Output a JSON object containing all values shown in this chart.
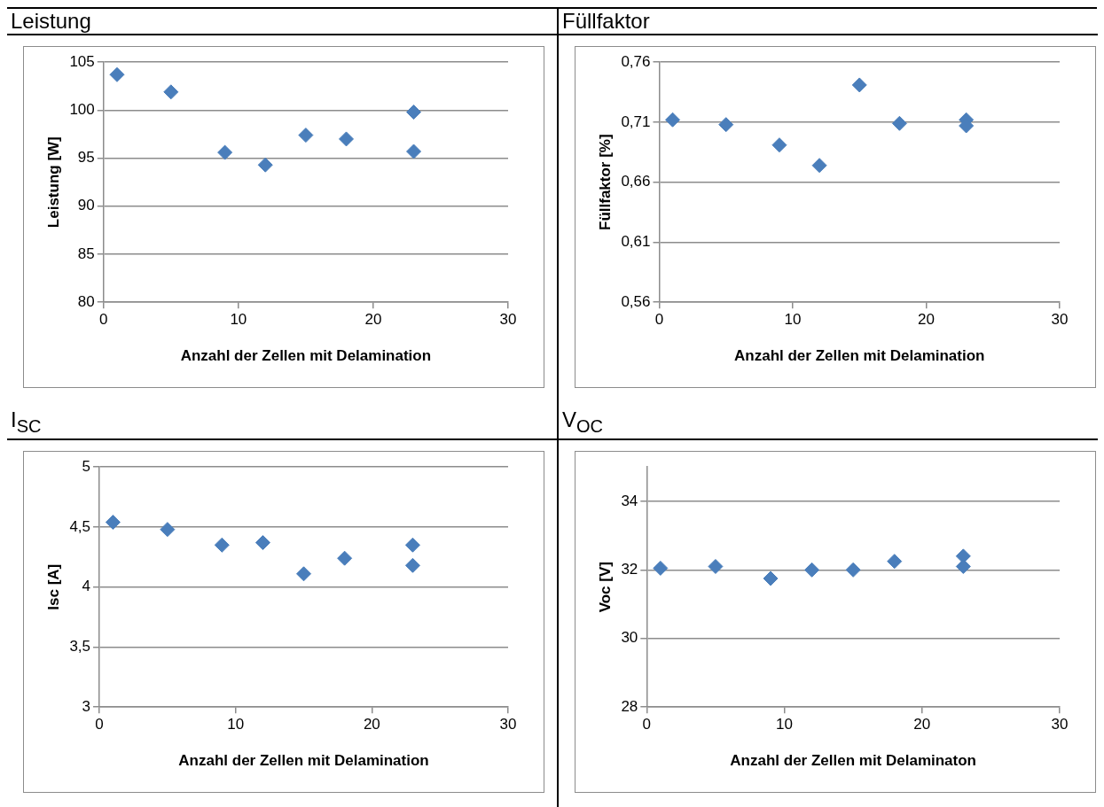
{
  "chart_data": [
    {
      "type": "scatter",
      "title": "Leistung",
      "xlabel": "Anzahl der Zellen mit Delamination",
      "ylabel": "Leistung [W]",
      "x": [
        1,
        5,
        9,
        12,
        15,
        18,
        23,
        23
      ],
      "series": [
        {
          "color": "#4a7ebb",
          "values": [
            103.7,
            101.9,
            95.6,
            94.3,
            97.4,
            97.0,
            99.8,
            95.7
          ]
        }
      ],
      "xlim": [
        0,
        30
      ],
      "xticks": [
        0,
        10,
        20,
        30
      ],
      "ylim": [
        80,
        105
      ],
      "yticks": [
        80,
        85,
        90,
        95,
        100,
        105
      ],
      "grid": "y",
      "marker": "diamond"
    },
    {
      "type": "scatter",
      "title": "Füllfaktor",
      "xlabel": "Anzahl der Zellen mit Delamination",
      "ylabel": "Füllfaktor [%]",
      "x": [
        1,
        5,
        9,
        12,
        15,
        18,
        23,
        23
      ],
      "series": [
        {
          "color": "#4a7ebb",
          "values": [
            0.712,
            0.708,
            0.691,
            0.674,
            0.741,
            0.709,
            0.712,
            0.707
          ]
        }
      ],
      "xlim": [
        0,
        30
      ],
      "xticks": [
        0,
        10,
        20,
        30
      ],
      "ylim": [
        0.56,
        0.76
      ],
      "yticks": [
        {
          "value": 0.56,
          "label": "0,56"
        },
        {
          "value": 0.61,
          "label": "0,61"
        },
        {
          "value": 0.66,
          "label": "0,66"
        },
        {
          "value": 0.71,
          "label": "0,71"
        },
        {
          "value": 0.76,
          "label": "0,76"
        }
      ],
      "grid": "y",
      "marker": "diamond"
    },
    {
      "type": "scatter",
      "title": "I$_{SC}$",
      "xlabel": "Anzahl der Zellen mit Delamination",
      "ylabel": "Isc [A]",
      "x": [
        1,
        5,
        9,
        12,
        15,
        18,
        23,
        23
      ],
      "series": [
        {
          "color": "#4a7ebb",
          "values": [
            4.54,
            4.48,
            4.35,
            4.37,
            4.11,
            4.24,
            4.35,
            4.18
          ]
        }
      ],
      "xlim": [
        0,
        30
      ],
      "xticks": [
        0,
        10,
        20,
        30
      ],
      "ylim": [
        3,
        5
      ],
      "yticks": [
        3,
        {
          "value": 3.5,
          "label": "3,5"
        },
        4,
        {
          "value": 4.5,
          "label": "4,5"
        },
        5
      ],
      "grid": "y",
      "marker": "diamond"
    },
    {
      "type": "scatter",
      "title": "V$_{OC}$",
      "xlabel": "Anzahl der Zellen mit Delaminaton",
      "ylabel": "Voc [V]",
      "x": [
        1,
        5,
        9,
        12,
        15,
        18,
        23,
        23
      ],
      "series": [
        {
          "color": "#4a7ebb",
          "values": [
            32.05,
            32.1,
            31.75,
            32.0,
            32.0,
            32.25,
            32.4,
            32.1
          ]
        }
      ],
      "xlim": [
        0,
        30
      ],
      "xticks": [
        0,
        10,
        20,
        30
      ],
      "ylim": [
        28,
        35
      ],
      "yticks": [
        28,
        30,
        32,
        34
      ],
      "grid": "y",
      "marker": "diamond"
    }
  ]
}
